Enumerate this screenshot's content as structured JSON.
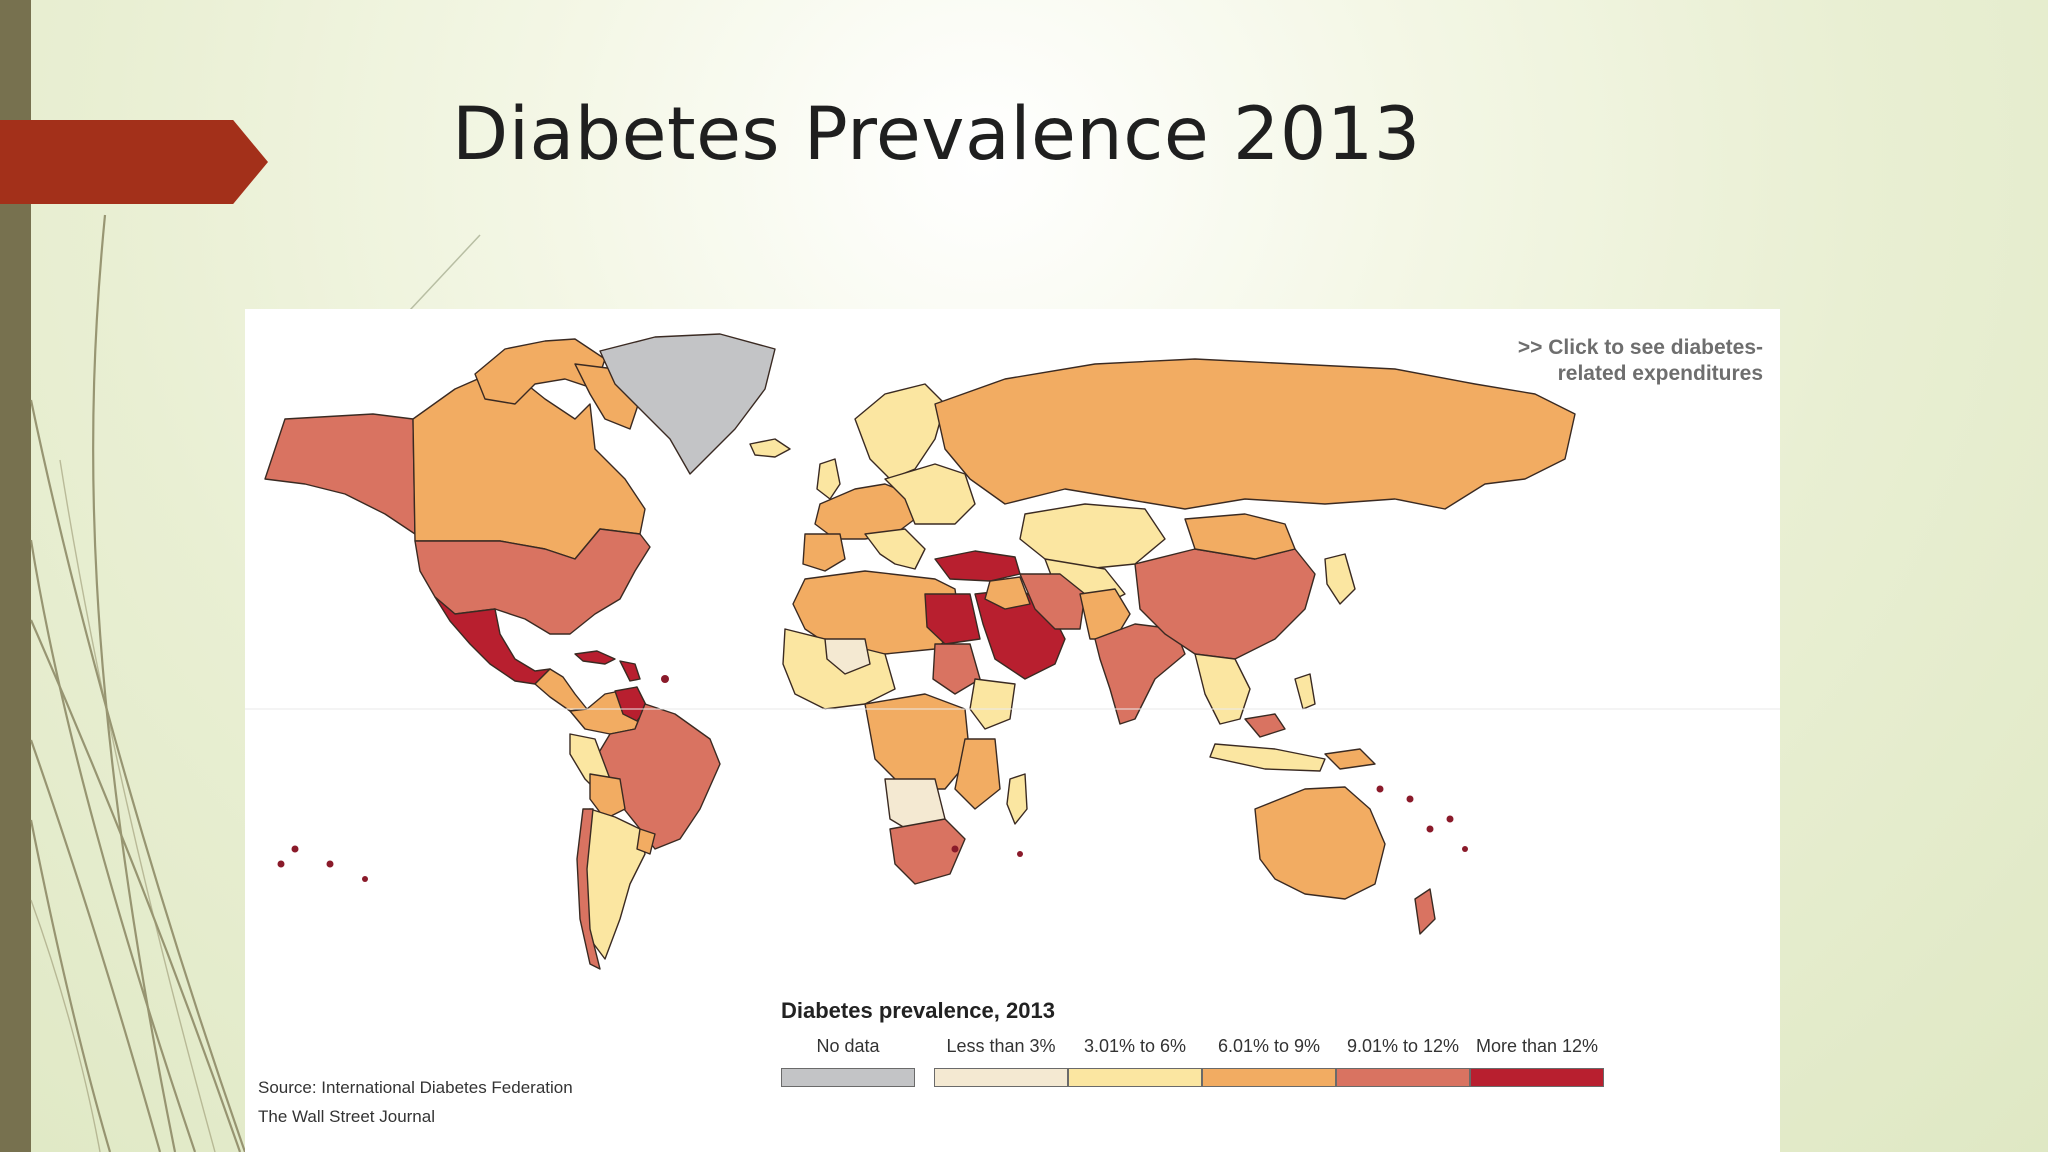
{
  "slide": {
    "title": "Diabetes Prevalence 2013"
  },
  "map": {
    "title": "Diabetes prevalence, 2013",
    "link_text_line1": ">> Click to see diabetes-",
    "link_text_line2": "related expenditures",
    "source_line1": "Source: International Diabetes Federation",
    "source_line2": "The Wall Street Journal",
    "legend": [
      {
        "label": "No data",
        "color": "#c3c4c6"
      },
      {
        "label": "Less than 3%",
        "color": "#f4e9d2"
      },
      {
        "label": "3.01% to 6%",
        "color": "#fbe6a1"
      },
      {
        "label": "6.01% to 9%",
        "color": "#f2ac62"
      },
      {
        "label": "9.01% to 12%",
        "color": "#d97361"
      },
      {
        "label": "More than 12%",
        "color": "#b81f2f"
      }
    ]
  },
  "theme": {
    "accent": "#a3301a",
    "strip": "#77714f"
  }
}
